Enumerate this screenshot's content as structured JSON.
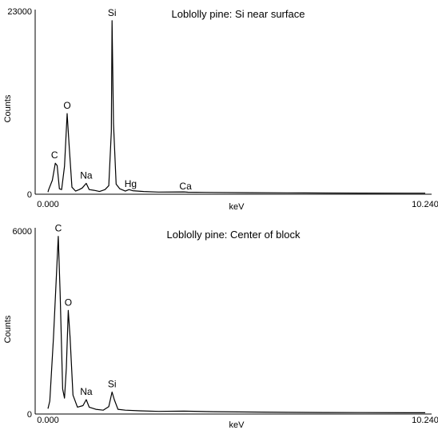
{
  "chart_data": [
    {
      "type": "line",
      "title": "Loblolly pine: Si near surface",
      "xlabel": "keV",
      "ylabel": "Counts",
      "xlim": [
        0.0,
        10.24
      ],
      "ylim": [
        0,
        23000
      ],
      "x_tick_labels": [
        "0.000",
        "10.240"
      ],
      "y_tick_labels": [
        "0",
        "23000"
      ],
      "series": [
        {
          "points": [
            [
              0.0,
              180
            ],
            [
              0.02,
              500
            ],
            [
              0.12,
              1700
            ],
            [
              0.2,
              3900
            ],
            [
              0.25,
              3600
            ],
            [
              0.31,
              600
            ],
            [
              0.37,
              500
            ],
            [
              0.45,
              3500
            ],
            [
              0.52,
              10300
            ],
            [
              0.57,
              6500
            ],
            [
              0.65,
              800
            ],
            [
              0.75,
              300
            ],
            [
              0.85,
              500
            ],
            [
              0.93,
              700
            ],
            [
              1.04,
              1300
            ],
            [
              1.12,
              500
            ],
            [
              1.25,
              400
            ],
            [
              1.4,
              250
            ],
            [
              1.55,
              500
            ],
            [
              1.65,
              1000
            ],
            [
              1.72,
              8000
            ],
            [
              1.74,
              22300
            ],
            [
              1.78,
              9000
            ],
            [
              1.85,
              1200
            ],
            [
              1.95,
              600
            ],
            [
              2.1,
              300
            ],
            [
              2.2,
              500
            ],
            [
              2.3,
              350
            ],
            [
              2.6,
              250
            ],
            [
              3.0,
              180
            ],
            [
              3.69,
              200
            ],
            [
              3.8,
              150
            ],
            [
              4.5,
              120
            ],
            [
              5.5,
              90
            ],
            [
              6.5,
              70
            ],
            [
              7.5,
              50
            ],
            [
              8.5,
              40
            ],
            [
              10.24,
              30
            ]
          ]
        }
      ],
      "annotations": [
        {
          "label": "Si",
          "x": 1.74,
          "y": 22300
        },
        {
          "label": "O",
          "x": 0.52,
          "y": 10300
        },
        {
          "label": "C",
          "x": 0.2,
          "y": 3900
        },
        {
          "label": "Na",
          "x": 1.04,
          "y": 1300
        },
        {
          "label": "Hg",
          "x": 2.2,
          "y": 500
        },
        {
          "label": "Ca",
          "x": 3.69,
          "y": 200
        }
      ]
    },
    {
      "type": "line",
      "title": "Loblolly pine: Center of block",
      "xlabel": "keV",
      "ylabel": "Counts",
      "xlim": [
        0.0,
        10.24
      ],
      "ylim": [
        0,
        6000
      ],
      "x_tick_labels": [
        "0.000",
        "10.240"
      ],
      "y_tick_labels": [
        "0",
        "6000"
      ],
      "series": [
        {
          "points": [
            [
              0.0,
              150
            ],
            [
              0.05,
              400
            ],
            [
              0.15,
              2500
            ],
            [
              0.28,
              5850
            ],
            [
              0.33,
              4000
            ],
            [
              0.4,
              800
            ],
            [
              0.45,
              500
            ],
            [
              0.5,
              1500
            ],
            [
              0.55,
              3400
            ],
            [
              0.6,
              2500
            ],
            [
              0.68,
              600
            ],
            [
              0.8,
              200
            ],
            [
              0.95,
              250
            ],
            [
              1.04,
              450
            ],
            [
              1.12,
              200
            ],
            [
              1.3,
              130
            ],
            [
              1.5,
              100
            ],
            [
              1.65,
              220
            ],
            [
              1.74,
              700
            ],
            [
              1.8,
              450
            ],
            [
              1.9,
              130
            ],
            [
              2.1,
              100
            ],
            [
              2.5,
              80
            ],
            [
              3.0,
              60
            ],
            [
              3.69,
              70
            ],
            [
              4.5,
              50
            ],
            [
              5.5,
              40
            ],
            [
              6.5,
              30
            ],
            [
              7.5,
              25
            ],
            [
              8.5,
              20
            ],
            [
              10.24,
              15
            ]
          ]
        }
      ],
      "annotations": [
        {
          "label": "C",
          "x": 0.28,
          "y": 5850
        },
        {
          "label": "O",
          "x": 0.55,
          "y": 3400
        },
        {
          "label": "Si",
          "x": 1.74,
          "y": 700
        },
        {
          "label": "Na",
          "x": 1.04,
          "y": 450
        }
      ]
    }
  ]
}
